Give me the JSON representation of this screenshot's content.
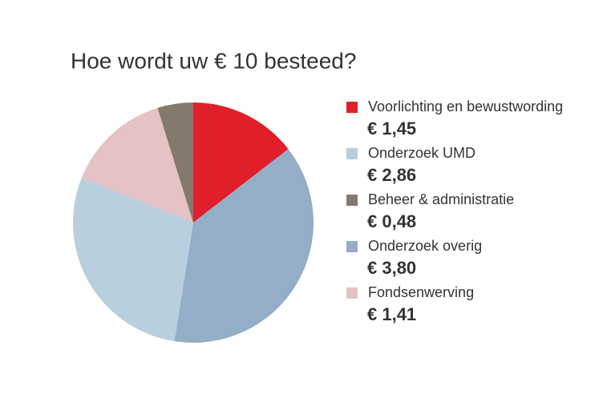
{
  "chart_data": {
    "type": "pie",
    "title": "Hoe wordt uw € 10 besteed?",
    "categories": [
      "Voorlichting en bewustwording",
      "Onderzoek UMD",
      "Beheer & administratie",
      "Onderzoek overig",
      "Fondsenwerving"
    ],
    "values": [
      1.45,
      2.86,
      0.48,
      3.8,
      1.41
    ],
    "value_labels": [
      "€ 1,45",
      "€ 2,86",
      "€ 0,48",
      "€ 3,80",
      "€ 1,41"
    ],
    "colors": [
      "#e01f2b",
      "#b9cfdd",
      "#847a6c",
      "#94aec7",
      "#e4c2c5"
    ],
    "slice_order": [
      0,
      3,
      1,
      4,
      2
    ],
    "legend": "right"
  }
}
